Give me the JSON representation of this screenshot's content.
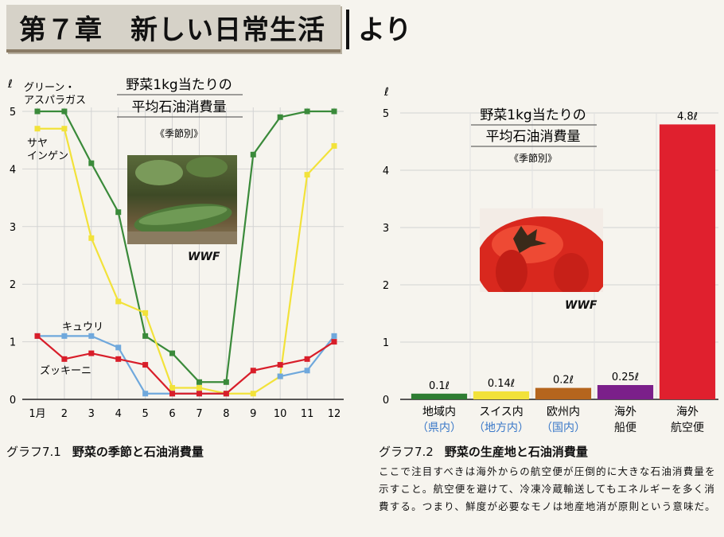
{
  "header": {
    "chapter_title": "第７章　新しい日常生活",
    "suffix": "より"
  },
  "chart1": {
    "unit_label": "ℓ",
    "title_line1": "野菜1kg当たりの",
    "title_line2": "平均石油消費量",
    "subtitle": "《季節別》",
    "photo_credit": "WWF",
    "caption_number": "グラフ7.1",
    "caption_text": "野菜の季節と石油消費量",
    "series_labels": {
      "asparagus": [
        "グリーン・",
        "アスパラガス"
      ],
      "sayaingen": [
        "サヤ",
        "インゲン"
      ],
      "kyuri": [
        "キュウリ"
      ],
      "zucchini": [
        "ズッキーニ"
      ]
    }
  },
  "chart2": {
    "unit_label": "ℓ",
    "title_line1": "野菜1kg当たりの",
    "title_line2": "平均石油消費量",
    "subtitle": "《季節別》",
    "photo_credit": "WWF",
    "caption_number": "グラフ7.2",
    "caption_text": "野菜の生産地と石油消費量"
  },
  "note": "ここで注目すべきは海外からの航空便が圧倒的に大きな石油消費量を示すこと。航空便を避けて、冷凍冷蔵輸送してもエネルギーを多く消費する。つまり、鮮度が必要なモノは地産地消が原則という意味だ。",
  "chart_data": [
    {
      "type": "line",
      "ylabel": "ℓ",
      "ylim": [
        0,
        5
      ],
      "yticks": [
        "0",
        "1",
        "2",
        "3",
        "4",
        "5"
      ],
      "x": [
        "1月",
        "2",
        "3",
        "4",
        "5",
        "6",
        "7",
        "8",
        "9",
        "10",
        "11",
        "12"
      ],
      "grid": true,
      "series": [
        {
          "name": "グリーン・アスパラガス",
          "color": "#3a8a3a",
          "values": [
            5.0,
            5.0,
            4.1,
            3.25,
            1.1,
            0.8,
            0.3,
            0.3,
            4.25,
            4.9,
            5.0,
            5.0
          ]
        },
        {
          "name": "サヤインゲン",
          "color": "#f2e23a",
          "values": [
            4.7,
            4.7,
            2.8,
            1.7,
            1.5,
            0.2,
            0.2,
            0.1,
            0.1,
            0.4,
            3.9,
            4.4
          ]
        },
        {
          "name": "キュウリ",
          "color": "#6fa8dc",
          "values": [
            1.1,
            1.1,
            1.1,
            0.9,
            0.1,
            0.1,
            0.1,
            0.1,
            null,
            0.4,
            0.5,
            1.1
          ]
        },
        {
          "name": "ズッキーニ",
          "color": "#d81e2a",
          "values": [
            1.1,
            0.7,
            0.8,
            0.7,
            0.6,
            0.1,
            0.1,
            0.1,
            0.5,
            0.6,
            0.7,
            1.0
          ]
        }
      ]
    },
    {
      "type": "bar",
      "ylabel": "ℓ",
      "ylim": [
        0,
        5
      ],
      "yticks": [
        "0",
        "1",
        "2",
        "3",
        "4",
        "5"
      ],
      "grid": true,
      "categories": [
        {
          "line1": "地域内",
          "line2": "（県内）",
          "line2_color": "#3a78c8",
          "value": 0.1,
          "label": "0.1ℓ",
          "color": "#2e7d32"
        },
        {
          "line1": "スイス内",
          "line2": "（地方内）",
          "line2_color": "#3a78c8",
          "value": 0.14,
          "label": "0.14ℓ",
          "color": "#f2e23a"
        },
        {
          "line1": "欧州内",
          "line2": "（国内）",
          "line2_color": "#3a78c8",
          "value": 0.2,
          "label": "0.2ℓ",
          "color": "#b5651d"
        },
        {
          "line1": "海外",
          "line2": "船便",
          "line2_color": "#111111",
          "value": 0.25,
          "label": "0.25ℓ",
          "color": "#7b1f8a"
        },
        {
          "line1": "海外",
          "line2": "航空便",
          "line2_color": "#111111",
          "value": 4.8,
          "label": "4.8ℓ",
          "color": "#e0202e"
        }
      ]
    }
  ]
}
